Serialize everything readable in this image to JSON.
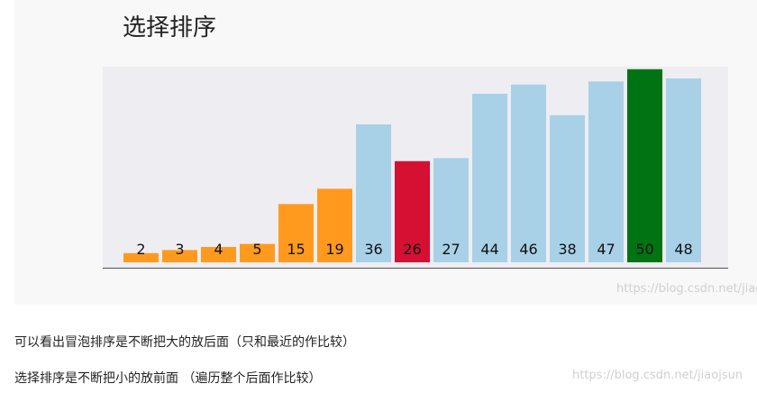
{
  "title": "选择排序",
  "chart_data": {
    "type": "bar",
    "values": [
      2,
      3,
      4,
      5,
      15,
      19,
      36,
      26,
      27,
      44,
      46,
      38,
      47,
      50,
      48
    ],
    "bar_heights": [
      3,
      4,
      5,
      6,
      19,
      24,
      45,
      33,
      34,
      55,
      58,
      48,
      59,
      63,
      60
    ],
    "bar_states": [
      "sorted",
      "sorted",
      "sorted",
      "sorted",
      "sorted",
      "sorted",
      "unsorted",
      "current",
      "unsorted",
      "unsorted",
      "unsorted",
      "unsorted",
      "unsorted",
      "selected",
      "unsorted"
    ],
    "colors": {
      "sorted": "#ff9a1f",
      "unsorted": "#a8d1e7",
      "current": "#d51033",
      "selected": "#007413",
      "background": "#eeedf2"
    },
    "grid": false
  },
  "watermark_figure": "https://blog.csdn.net/jiaojs",
  "captions": {
    "line1": "可以看出冒泡排序是不断把大的放后面（只和最近的作比较）",
    "line2": "选择排序是不断把小的放前面 （遍历整个后面作比较）"
  },
  "watermark_page": "https://blog.csdn.net/jiaojsun"
}
